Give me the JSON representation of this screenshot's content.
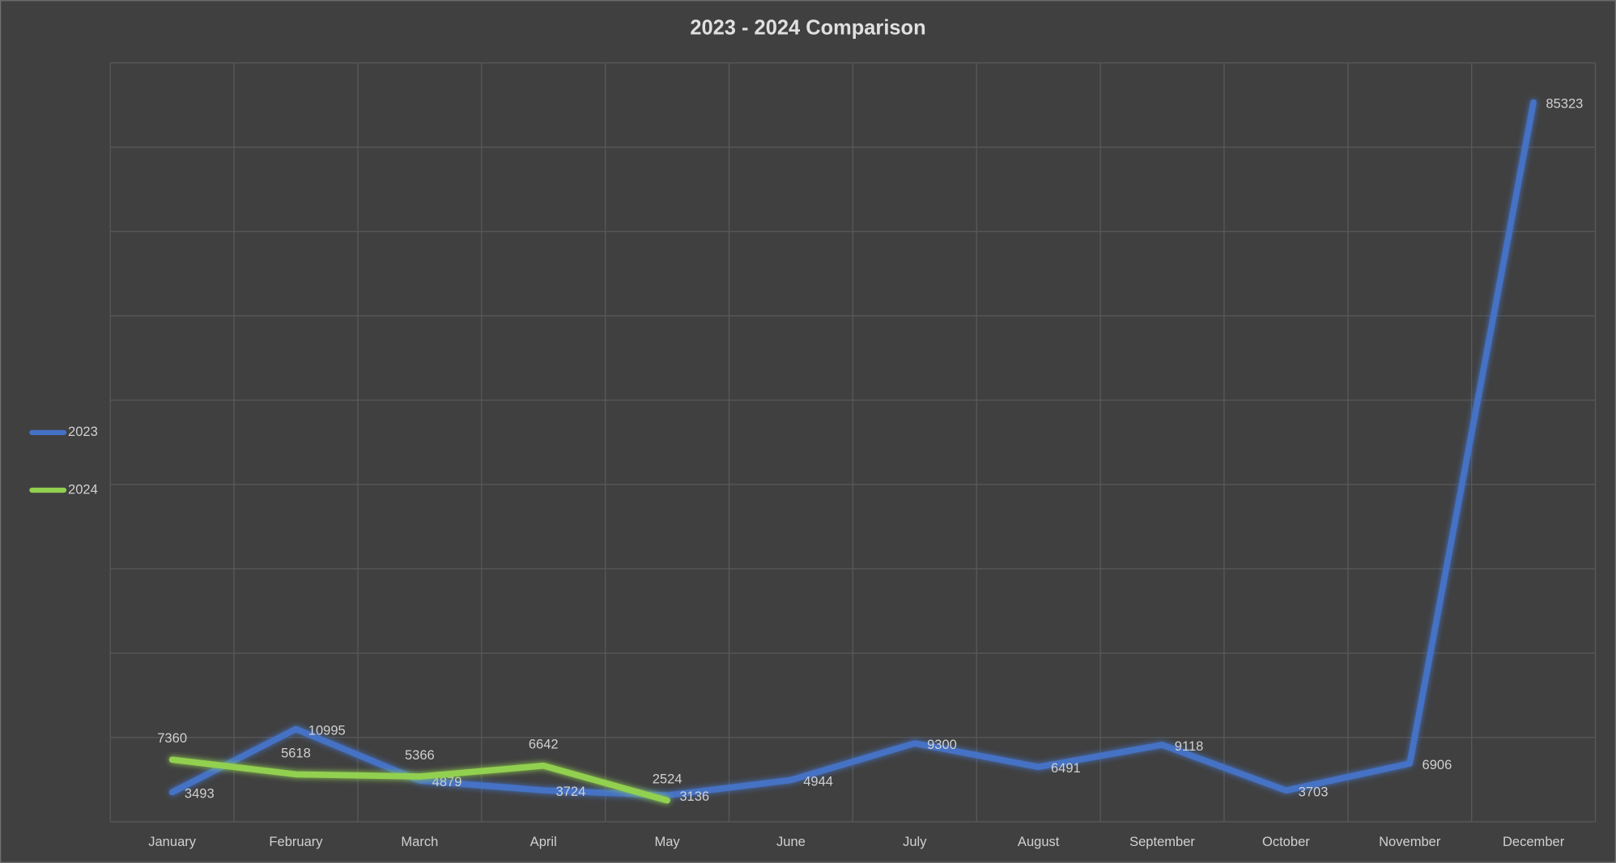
{
  "chart_data": {
    "type": "line",
    "title": "2023 - 2024 Comparison",
    "categories": [
      "January",
      "February",
      "March",
      "April",
      "May",
      "June",
      "July",
      "August",
      "September",
      "October",
      "November",
      "December"
    ],
    "series": [
      {
        "name": "2023",
        "color": "#4472c4",
        "values": [
          3493,
          10995,
          4879,
          3724,
          3136,
          4944,
          9300,
          6491,
          9118,
          3703,
          6906,
          85323
        ]
      },
      {
        "name": "2024",
        "color": "#92d050",
        "values": [
          7360,
          5618,
          5366,
          6642,
          2524,
          null,
          null,
          null,
          null,
          null,
          null,
          null
        ]
      }
    ],
    "ylim": [
      0,
      90000
    ],
    "yticks": [
      0,
      10000,
      20000,
      30000,
      40000,
      50000,
      60000,
      70000,
      80000,
      90000
    ],
    "grid": true,
    "legend": "left"
  }
}
